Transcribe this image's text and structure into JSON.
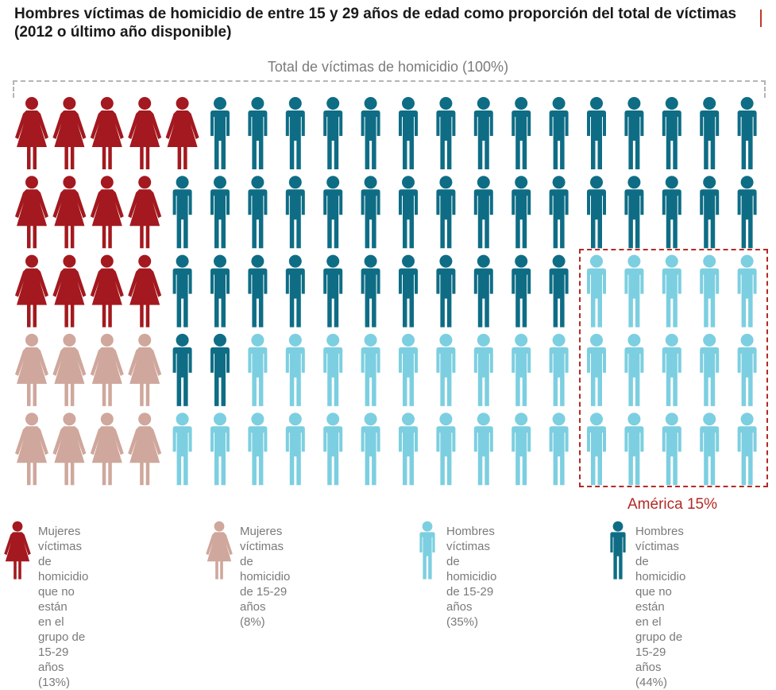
{
  "title": "Hombres víctimas de homicidio de entre 15 y 29 años de edad como proporción del total de víctimas (2012 o último año disponible)",
  "total_label": "Total de víctimas de homicidio (100%)",
  "region_label": "América 15%",
  "colors": {
    "women_not_15_29": "#a3191f",
    "women_15_29": "#cfa79c",
    "men_15_29": "#7ccfe0",
    "men_not_15_29": "#0e6d85",
    "accent": "#b22a25"
  },
  "legend": [
    {
      "key": "women_not_15_29",
      "shape": "female",
      "label": "Mujeres víctimas de\nhomicidio que no están\nen el grupo de 15-29\naños (13%)"
    },
    {
      "key": "women_15_29",
      "shape": "female",
      "label": "Mujeres víctimas de\nhomicidio\nde 15-29 años (8%)"
    },
    {
      "key": "men_15_29",
      "shape": "male",
      "label": "Hombres víctimas de\nhomicidio de 15-29\naños (35%)"
    },
    {
      "key": "men_not_15_29",
      "shape": "male",
      "label": "Hombres víctimas de\nhomicidio que no están\nen el grupo de 15-29\naños (44%)"
    }
  ],
  "chart_data": {
    "type": "pictogram",
    "total": 100,
    "rows": 5,
    "columns": 20,
    "categories": [
      {
        "key": "women_not_15_29",
        "name": "Mujeres víctimas de homicidio que no están en el grupo de 15-29 años",
        "percent": 13
      },
      {
        "key": "women_15_29",
        "name": "Mujeres víctimas de homicidio de 15-29 años",
        "percent": 8
      },
      {
        "key": "men_15_29",
        "name": "Hombres víctimas de homicidio de 15-29 años",
        "percent": 35
      },
      {
        "key": "men_not_15_29",
        "name": "Hombres víctimas de homicidio que no están en el grupo de 15-29 años",
        "percent": 44
      }
    ],
    "grid": [
      [
        "women_not_15_29",
        "women_not_15_29",
        "women_not_15_29",
        "women_not_15_29",
        "women_not_15_29",
        "men_not_15_29",
        "men_not_15_29",
        "men_not_15_29",
        "men_not_15_29",
        "men_not_15_29",
        "men_not_15_29",
        "men_not_15_29",
        "men_not_15_29",
        "men_not_15_29",
        "men_not_15_29",
        "men_not_15_29",
        "men_not_15_29",
        "men_not_15_29",
        "men_not_15_29",
        "men_not_15_29"
      ],
      [
        "women_not_15_29",
        "women_not_15_29",
        "women_not_15_29",
        "women_not_15_29",
        "men_not_15_29",
        "men_not_15_29",
        "men_not_15_29",
        "men_not_15_29",
        "men_not_15_29",
        "men_not_15_29",
        "men_not_15_29",
        "men_not_15_29",
        "men_not_15_29",
        "men_not_15_29",
        "men_not_15_29",
        "men_not_15_29",
        "men_not_15_29",
        "men_not_15_29",
        "men_not_15_29",
        "men_not_15_29"
      ],
      [
        "women_not_15_29",
        "women_not_15_29",
        "women_not_15_29",
        "women_not_15_29",
        "men_not_15_29",
        "men_not_15_29",
        "men_not_15_29",
        "men_not_15_29",
        "men_not_15_29",
        "men_not_15_29",
        "men_not_15_29",
        "men_not_15_29",
        "men_not_15_29",
        "men_not_15_29",
        "men_not_15_29",
        "men_15_29",
        "men_15_29",
        "men_15_29",
        "men_15_29",
        "men_15_29"
      ],
      [
        "women_15_29",
        "women_15_29",
        "women_15_29",
        "women_15_29",
        "men_not_15_29",
        "men_not_15_29",
        "men_15_29",
        "men_15_29",
        "men_15_29",
        "men_15_29",
        "men_15_29",
        "men_15_29",
        "men_15_29",
        "men_15_29",
        "men_15_29",
        "men_15_29",
        "men_15_29",
        "men_15_29",
        "men_15_29",
        "men_15_29"
      ],
      [
        "women_15_29",
        "women_15_29",
        "women_15_29",
        "women_15_29",
        "men_15_29",
        "men_15_29",
        "men_15_29",
        "men_15_29",
        "men_15_29",
        "men_15_29",
        "men_15_29",
        "men_15_29",
        "men_15_29",
        "men_15_29",
        "men_15_29",
        "men_15_29",
        "men_15_29",
        "men_15_29",
        "men_15_29",
        "men_15_29"
      ]
    ],
    "highlight": {
      "label": "América 15%",
      "percent": 15
    }
  }
}
